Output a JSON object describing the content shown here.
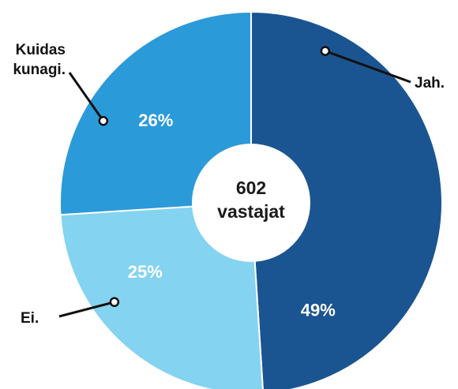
{
  "chart_data": {
    "type": "pie",
    "donut": true,
    "center_label": {
      "number": "602",
      "text": "vastajat"
    },
    "slices": [
      {
        "label": "Jah.",
        "value": 49,
        "value_label": "49%",
        "color": "#1b5591"
      },
      {
        "label": "Ei.",
        "value": 25,
        "value_label": "25%",
        "color": "#84d3f0"
      },
      {
        "label": "Kuidas kunagi.",
        "label_lines": [
          "Kuidas",
          "kunagi."
        ],
        "value": 26,
        "value_label": "26%",
        "color": "#2b9ad9"
      }
    ]
  }
}
